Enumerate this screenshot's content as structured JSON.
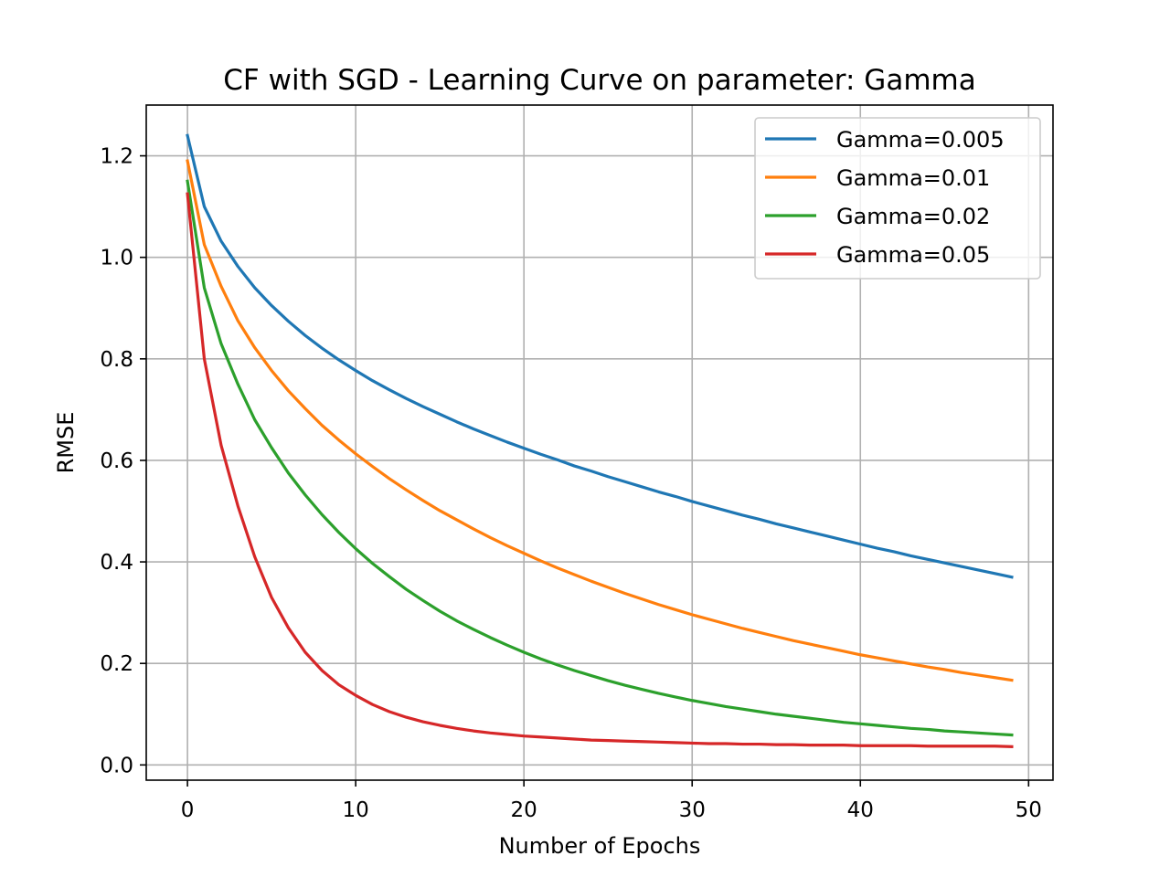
{
  "chart_data": {
    "type": "line",
    "title": "CF with SGD - Learning Curve on parameter: Gamma",
    "xlabel": "Number of Epochs",
    "ylabel": "RMSE",
    "xlim": [
      -2.45,
      51.45
    ],
    "ylim": [
      -0.03,
      1.3
    ],
    "xticks": [
      0,
      10,
      20,
      30,
      40,
      50
    ],
    "yticks": [
      0.0,
      0.2,
      0.4,
      0.6,
      0.8,
      1.0,
      1.2
    ],
    "xtick_labels": [
      "0",
      "10",
      "20",
      "30",
      "40",
      "50"
    ],
    "ytick_labels": [
      "0.0",
      "0.2",
      "0.4",
      "0.6",
      "0.8",
      "1.0",
      "1.2"
    ],
    "grid": true,
    "legend_position": "top-right",
    "x": [
      0,
      1,
      2,
      3,
      4,
      5,
      6,
      7,
      8,
      9,
      10,
      11,
      12,
      13,
      14,
      15,
      16,
      17,
      18,
      19,
      20,
      21,
      22,
      23,
      24,
      25,
      26,
      27,
      28,
      29,
      30,
      31,
      32,
      33,
      34,
      35,
      36,
      37,
      38,
      39,
      40,
      41,
      42,
      43,
      44,
      45,
      46,
      47,
      48,
      49
    ],
    "series": [
      {
        "name": "Gamma=0.005",
        "color": "#1f77b4",
        "values": [
          1.24,
          1.1,
          1.032,
          0.982,
          0.94,
          0.905,
          0.874,
          0.846,
          0.821,
          0.798,
          0.777,
          0.757,
          0.739,
          0.722,
          0.706,
          0.691,
          0.676,
          0.662,
          0.649,
          0.636,
          0.624,
          0.612,
          0.601,
          0.589,
          0.579,
          0.568,
          0.558,
          0.548,
          0.538,
          0.529,
          0.519,
          0.51,
          0.501,
          0.492,
          0.484,
          0.475,
          0.467,
          0.459,
          0.451,
          0.443,
          0.435,
          0.427,
          0.42,
          0.412,
          0.405,
          0.398,
          0.391,
          0.384,
          0.377,
          0.37
        ]
      },
      {
        "name": "Gamma=0.01",
        "color": "#ff7f0e",
        "values": [
          1.19,
          1.025,
          0.943,
          0.875,
          0.822,
          0.777,
          0.737,
          0.702,
          0.669,
          0.64,
          0.613,
          0.588,
          0.564,
          0.542,
          0.521,
          0.501,
          0.483,
          0.465,
          0.448,
          0.432,
          0.417,
          0.402,
          0.388,
          0.375,
          0.362,
          0.35,
          0.338,
          0.327,
          0.316,
          0.306,
          0.296,
          0.287,
          0.278,
          0.269,
          0.261,
          0.253,
          0.245,
          0.238,
          0.231,
          0.224,
          0.217,
          0.211,
          0.205,
          0.199,
          0.193,
          0.188,
          0.182,
          0.177,
          0.172,
          0.167
        ]
      },
      {
        "name": "Gamma=0.02",
        "color": "#2ca02c",
        "values": [
          1.15,
          0.94,
          0.83,
          0.75,
          0.68,
          0.625,
          0.575,
          0.532,
          0.493,
          0.458,
          0.426,
          0.397,
          0.371,
          0.346,
          0.324,
          0.303,
          0.284,
          0.267,
          0.251,
          0.236,
          0.222,
          0.209,
          0.197,
          0.186,
          0.176,
          0.166,
          0.157,
          0.149,
          0.141,
          0.134,
          0.127,
          0.121,
          0.115,
          0.11,
          0.105,
          0.1,
          0.096,
          0.092,
          0.088,
          0.084,
          0.081,
          0.078,
          0.075,
          0.072,
          0.07,
          0.067,
          0.065,
          0.063,
          0.061,
          0.059
        ]
      },
      {
        "name": "Gamma=0.05",
        "color": "#d62728",
        "values": [
          1.125,
          0.8,
          0.63,
          0.51,
          0.41,
          0.33,
          0.27,
          0.222,
          0.186,
          0.158,
          0.137,
          0.119,
          0.105,
          0.094,
          0.085,
          0.078,
          0.072,
          0.067,
          0.063,
          0.06,
          0.057,
          0.055,
          0.053,
          0.051,
          0.049,
          0.048,
          0.047,
          0.046,
          0.045,
          0.044,
          0.043,
          0.042,
          0.042,
          0.041,
          0.041,
          0.04,
          0.04,
          0.039,
          0.039,
          0.039,
          0.038,
          0.038,
          0.038,
          0.038,
          0.037,
          0.037,
          0.037,
          0.037,
          0.037,
          0.036
        ]
      }
    ]
  }
}
